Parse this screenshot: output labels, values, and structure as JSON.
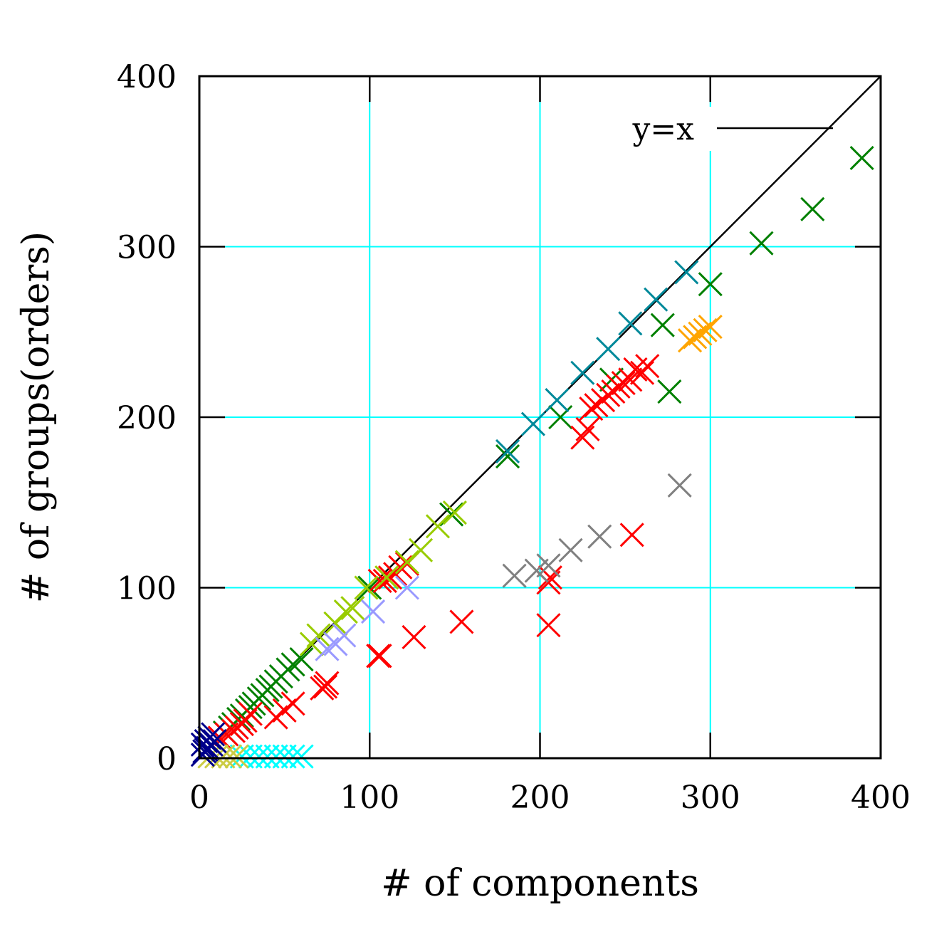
{
  "chart_data": {
    "type": "scatter",
    "title": "",
    "xlabel": "# of components",
    "ylabel": "# of groups(orders)",
    "xlim": [
      0,
      400
    ],
    "ylim": [
      0,
      400
    ],
    "xticks": [
      0,
      100,
      200,
      300,
      400
    ],
    "yticks": [
      0,
      100,
      200,
      300,
      400
    ],
    "grid": true,
    "grid_color": "#00ffff",
    "reference_line": {
      "label": "y=x",
      "color": "#000000",
      "legend_position": "top-right"
    },
    "series": [
      {
        "color": "#008000",
        "marker": "x",
        "points": [
          [
            389,
            352
          ],
          [
            360,
            322
          ],
          [
            330,
            302
          ],
          [
            300,
            278
          ],
          [
            272,
            254
          ],
          [
            276,
            215
          ],
          [
            242,
            222
          ],
          [
            212,
            200
          ],
          [
            181,
            177
          ],
          [
            148,
            143
          ],
          [
            100,
            100
          ],
          [
            60,
            58
          ],
          [
            55,
            55
          ],
          [
            52,
            52
          ],
          [
            48,
            48
          ],
          [
            45,
            45
          ],
          [
            42,
            42
          ],
          [
            40,
            40
          ],
          [
            37,
            37
          ],
          [
            35,
            35
          ],
          [
            32,
            32
          ],
          [
            30,
            30
          ],
          [
            28,
            28
          ],
          [
            25,
            25
          ],
          [
            23,
            23
          ],
          [
            20,
            20
          ],
          [
            18,
            18
          ],
          [
            15,
            15
          ]
        ]
      },
      {
        "color": "#00899a",
        "marker": "x",
        "points": [
          [
            286,
            285
          ],
          [
            268,
            269
          ],
          [
            253,
            255
          ],
          [
            240,
            240
          ],
          [
            225,
            226
          ],
          [
            210,
            210
          ],
          [
            196,
            196
          ],
          [
            181,
            180
          ]
        ]
      },
      {
        "color": "#ff0000",
        "marker": "x",
        "points": [
          [
            263,
            230
          ],
          [
            260,
            226
          ],
          [
            256,
            228
          ],
          [
            253,
            222
          ],
          [
            249,
            220
          ],
          [
            246,
            218
          ],
          [
            243,
            215
          ],
          [
            240,
            213
          ],
          [
            237,
            210
          ],
          [
            233,
            207
          ],
          [
            230,
            205
          ],
          [
            228,
            193
          ],
          [
            225,
            188
          ],
          [
            254,
            131
          ],
          [
            206,
            106
          ],
          [
            205,
            103
          ],
          [
            205,
            78
          ],
          [
            154,
            80
          ],
          [
            126,
            71
          ],
          [
            106,
            60
          ],
          [
            105,
            60
          ],
          [
            122,
            114
          ],
          [
            118,
            112
          ],
          [
            115,
            108
          ],
          [
            112,
            106
          ],
          [
            109,
            104
          ],
          [
            106,
            104
          ],
          [
            75,
            44
          ],
          [
            74,
            42
          ],
          [
            72,
            41
          ],
          [
            55,
            32
          ],
          [
            50,
            28
          ],
          [
            45,
            24
          ],
          [
            30,
            26
          ],
          [
            27,
            22
          ],
          [
            25,
            20
          ],
          [
            22,
            18
          ],
          [
            20,
            16
          ],
          [
            16,
            14
          ],
          [
            12,
            12
          ]
        ]
      },
      {
        "color": "#808080",
        "marker": "x",
        "points": [
          [
            282,
            160
          ],
          [
            235,
            130
          ],
          [
            218,
            122
          ],
          [
            205,
            113
          ],
          [
            198,
            110
          ],
          [
            185,
            107
          ]
        ]
      },
      {
        "color": "#ffa500",
        "marker": "x",
        "points": [
          [
            300,
            253
          ],
          [
            297,
            251
          ],
          [
            294,
            249
          ],
          [
            291,
            247
          ],
          [
            288,
            245
          ]
        ]
      },
      {
        "color": "#99cc00",
        "marker": "x",
        "points": [
          [
            150,
            144
          ],
          [
            140,
            136
          ],
          [
            130,
            122
          ],
          [
            122,
            115
          ],
          [
            110,
            106
          ],
          [
            98,
            100
          ],
          [
            90,
            88
          ],
          [
            86,
            86
          ],
          [
            80,
            79
          ],
          [
            70,
            72
          ],
          [
            66,
            67
          ]
        ]
      },
      {
        "color": "#9999ff",
        "marker": "x",
        "points": [
          [
            122,
            100
          ],
          [
            102,
            86
          ],
          [
            85,
            72
          ],
          [
            80,
            67
          ],
          [
            75,
            64
          ]
        ]
      },
      {
        "color": "#00ffff",
        "marker": "x",
        "points": [
          [
            60,
            1
          ],
          [
            55,
            1
          ],
          [
            50,
            1
          ],
          [
            45,
            1
          ],
          [
            40,
            1
          ],
          [
            35,
            1
          ],
          [
            30,
            1
          ],
          [
            25,
            1
          ]
        ]
      },
      {
        "color": "#cccc44",
        "marker": "x",
        "points": [
          [
            22,
            1
          ],
          [
            18,
            1
          ],
          [
            14,
            1
          ],
          [
            10,
            1
          ],
          [
            6,
            1
          ]
        ]
      },
      {
        "color": "#00008b",
        "marker": "x",
        "points": [
          [
            2,
            8
          ],
          [
            4,
            10
          ],
          [
            6,
            12
          ],
          [
            8,
            14
          ],
          [
            3,
            4
          ],
          [
            5,
            6
          ],
          [
            7,
            8
          ],
          [
            2,
            2
          ],
          [
            4,
            5
          ],
          [
            9,
            10
          ]
        ]
      }
    ]
  }
}
